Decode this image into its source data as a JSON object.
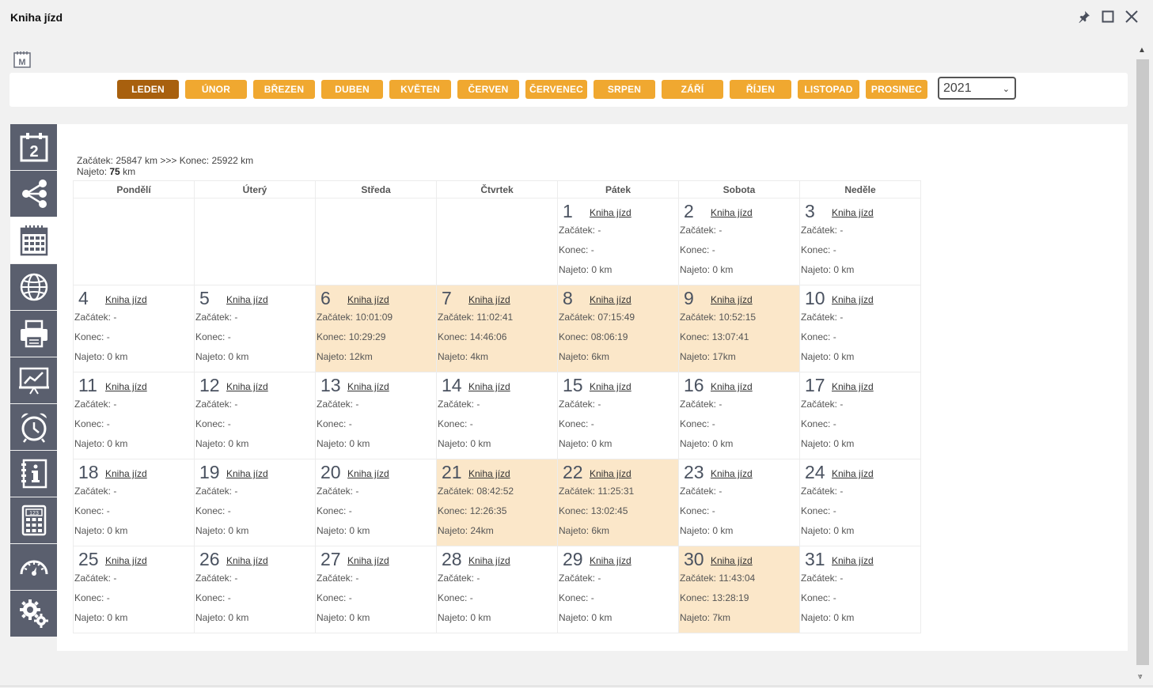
{
  "window": {
    "title": "Kniha jízd"
  },
  "months": [
    "LEDEN",
    "ÚNOR",
    "BŘEZEN",
    "DUBEN",
    "KVĚTEN",
    "ČERVEN",
    "ČERVENEC",
    "SRPEN",
    "ZÁŘÍ",
    "ŘÍJEN",
    "LISTOPAD",
    "PROSINEC"
  ],
  "active_month": "LEDEN",
  "year": "2021",
  "colors": {
    "accent": "#f0a830",
    "accent_active": "#a8600e",
    "sidebar": "#5a5f6e",
    "highlight": "#fbe7c9"
  },
  "sidebar_icons": [
    "calendar-day-icon",
    "tree-icon",
    "calendar-grid-icon",
    "globe-icon",
    "printer-icon",
    "chart-icon",
    "alarm-clock-icon",
    "info-book-icon",
    "calculator-icon",
    "speedometer-icon",
    "gears-icon"
  ],
  "summary": {
    "line1": "Začátek: 25847 km >>> Konec: 25922 km",
    "driven_label": "Najeto:",
    "driven_value": "75",
    "driven_unit": "km"
  },
  "weekdays": [
    "Pondělí",
    "Úterý",
    "Středa",
    "Čtvrtek",
    "Pátek",
    "Sobota",
    "Neděle"
  ],
  "first_weekday_offset": 4,
  "link_label": "Kniha jízd",
  "days": [
    {
      "d": "1",
      "start": "Začátek: -",
      "end": "Konec: -",
      "driven": "Najeto: 0 km",
      "hl": false
    },
    {
      "d": "2",
      "start": "Začátek: -",
      "end": "Konec: -",
      "driven": "Najeto: 0 km",
      "hl": false
    },
    {
      "d": "3",
      "start": "Začátek: -",
      "end": "Konec: -",
      "driven": "Najeto: 0 km",
      "hl": false
    },
    {
      "d": "4",
      "start": "Začátek: -",
      "end": "Konec: -",
      "driven": "Najeto: 0 km",
      "hl": false
    },
    {
      "d": "5",
      "start": "Začátek: -",
      "end": "Konec: -",
      "driven": "Najeto: 0 km",
      "hl": false
    },
    {
      "d": "6",
      "start": "Začátek: 10:01:09",
      "end": "Konec: 10:29:29",
      "driven": "Najeto: 12km",
      "hl": true
    },
    {
      "d": "7",
      "start": "Začátek: 11:02:41",
      "end": "Konec: 14:46:06",
      "driven": "Najeto: 4km",
      "hl": true
    },
    {
      "d": "8",
      "start": "Začátek: 07:15:49",
      "end": "Konec: 08:06:19",
      "driven": "Najeto: 6km",
      "hl": true
    },
    {
      "d": "9",
      "start": "Začátek: 10:52:15",
      "end": "Konec: 13:07:41",
      "driven": "Najeto: 17km",
      "hl": true
    },
    {
      "d": "10",
      "start": "Začátek: -",
      "end": "Konec: -",
      "driven": "Najeto: 0 km",
      "hl": false
    },
    {
      "d": "11",
      "start": "Začátek: -",
      "end": "Konec: -",
      "driven": "Najeto: 0 km",
      "hl": false
    },
    {
      "d": "12",
      "start": "Začátek: -",
      "end": "Konec: -",
      "driven": "Najeto: 0 km",
      "hl": false
    },
    {
      "d": "13",
      "start": "Začátek: -",
      "end": "Konec: -",
      "driven": "Najeto: 0 km",
      "hl": false
    },
    {
      "d": "14",
      "start": "Začátek: -",
      "end": "Konec: -",
      "driven": "Najeto: 0 km",
      "hl": false
    },
    {
      "d": "15",
      "start": "Začátek: -",
      "end": "Konec: -",
      "driven": "Najeto: 0 km",
      "hl": false
    },
    {
      "d": "16",
      "start": "Začátek: -",
      "end": "Konec: -",
      "driven": "Najeto: 0 km",
      "hl": false
    },
    {
      "d": "17",
      "start": "Začátek: -",
      "end": "Konec: -",
      "driven": "Najeto: 0 km",
      "hl": false
    },
    {
      "d": "18",
      "start": "Začátek: -",
      "end": "Konec: -",
      "driven": "Najeto: 0 km",
      "hl": false
    },
    {
      "d": "19",
      "start": "Začátek: -",
      "end": "Konec: -",
      "driven": "Najeto: 0 km",
      "hl": false
    },
    {
      "d": "20",
      "start": "Začátek: -",
      "end": "Konec: -",
      "driven": "Najeto: 0 km",
      "hl": false
    },
    {
      "d": "21",
      "start": "Začátek: 08:42:52",
      "end": "Konec: 12:26:35",
      "driven": "Najeto: 24km",
      "hl": true
    },
    {
      "d": "22",
      "start": "Začátek: 11:25:31",
      "end": "Konec: 13:02:45",
      "driven": "Najeto: 6km",
      "hl": true
    },
    {
      "d": "23",
      "start": "Začátek: -",
      "end": "Konec: -",
      "driven": "Najeto: 0 km",
      "hl": false
    },
    {
      "d": "24",
      "start": "Začátek: -",
      "end": "Konec: -",
      "driven": "Najeto: 0 km",
      "hl": false
    },
    {
      "d": "25",
      "start": "Začátek: -",
      "end": "Konec: -",
      "driven": "Najeto: 0 km",
      "hl": false
    },
    {
      "d": "26",
      "start": "Začátek: -",
      "end": "Konec: -",
      "driven": "Najeto: 0 km",
      "hl": false
    },
    {
      "d": "27",
      "start": "Začátek: -",
      "end": "Konec: -",
      "driven": "Najeto: 0 km",
      "hl": false
    },
    {
      "d": "28",
      "start": "Začátek: -",
      "end": "Konec: -",
      "driven": "Najeto: 0 km",
      "hl": false
    },
    {
      "d": "29",
      "start": "Začátek: -",
      "end": "Konec: -",
      "driven": "Najeto: 0 km",
      "hl": false
    },
    {
      "d": "30",
      "start": "Začátek: 11:43:04",
      "end": "Konec: 13:28:19",
      "driven": "Najeto: 7km",
      "hl": true
    },
    {
      "d": "31",
      "start": "Začátek: -",
      "end": "Konec: -",
      "driven": "Najeto: 0 km",
      "hl": false
    }
  ]
}
